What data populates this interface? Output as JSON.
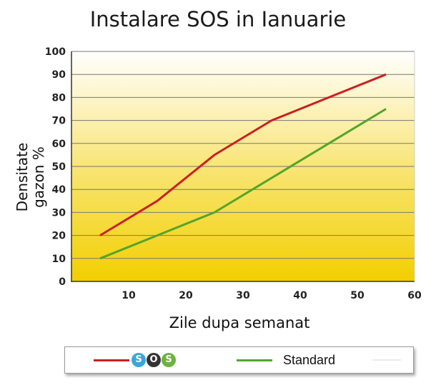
{
  "chart_data": {
    "type": "line",
    "title": "Instalare SOS in Ianuarie",
    "ylabel_lines": [
      "Densitate",
      "gazon %"
    ],
    "xlabel": "Zile dupa semanat",
    "xlim": [
      0,
      60
    ],
    "ylim": [
      0,
      100
    ],
    "xticks": [
      10,
      20,
      30,
      40,
      50,
      60
    ],
    "yticks": [
      0,
      10,
      20,
      30,
      40,
      50,
      60,
      70,
      80,
      90,
      100
    ],
    "grid": "horizontal",
    "legend_position": "bottom",
    "background_gradient": [
      "#f2cf00",
      "#ffffff"
    ],
    "series": [
      {
        "name": "SOS",
        "color": "#cc1f1f",
        "points": [
          [
            5,
            20
          ],
          [
            15,
            35
          ],
          [
            25,
            55
          ],
          [
            35,
            70
          ],
          [
            45,
            80
          ],
          [
            55,
            90
          ]
        ]
      },
      {
        "name": "Standard",
        "color": "#52a52a",
        "points": [
          [
            5,
            10
          ],
          [
            15,
            20
          ],
          [
            25,
            30
          ],
          [
            35,
            45
          ],
          [
            45,
            60
          ],
          [
            55,
            75
          ]
        ]
      }
    ]
  },
  "legend": {
    "logo_letters": [
      "S",
      "O",
      "S"
    ],
    "logo_colors": [
      "#3aa6d8",
      "#333333",
      "#6cb33f"
    ],
    "standard_label": "Standard"
  }
}
